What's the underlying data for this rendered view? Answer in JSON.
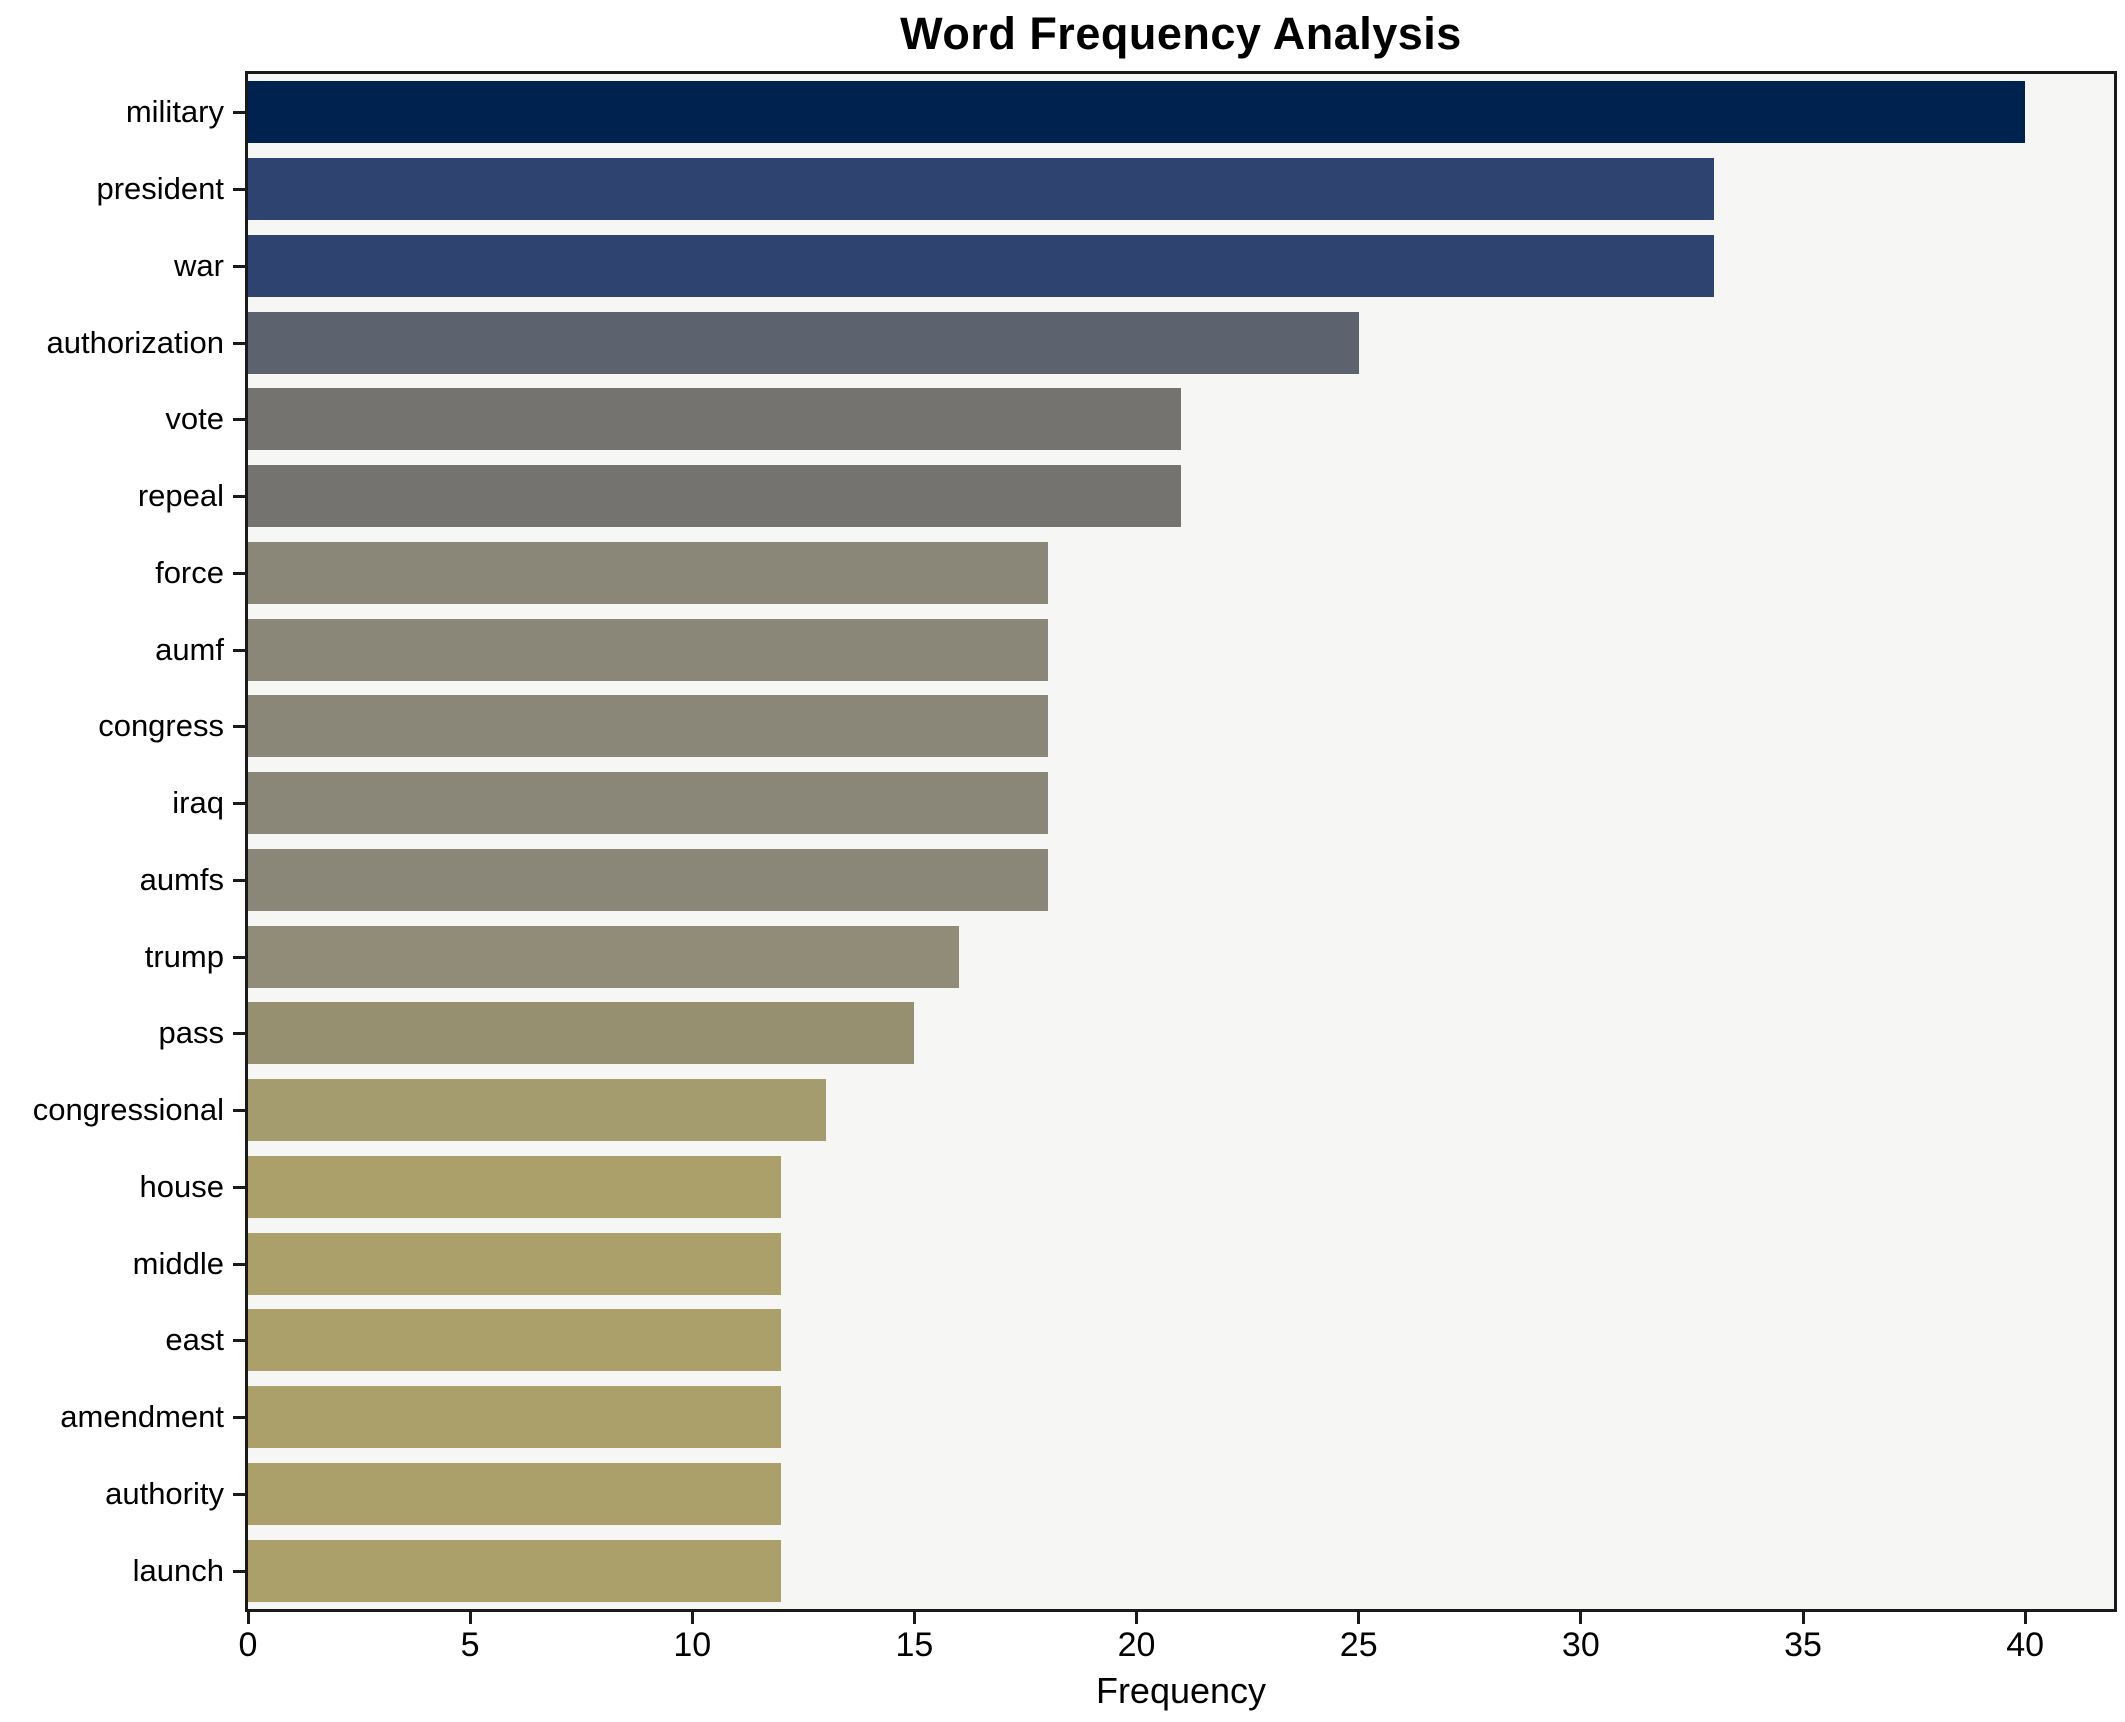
{
  "chart_data": {
    "type": "bar",
    "orientation": "horizontal",
    "title": "Word Frequency Analysis",
    "xlabel": "Frequency",
    "ylabel": "",
    "categories": [
      "military",
      "president",
      "war",
      "authorization",
      "vote",
      "repeal",
      "force",
      "aumf",
      "congress",
      "iraq",
      "aumfs",
      "trump",
      "pass",
      "congressional",
      "house",
      "middle",
      "east",
      "amendment",
      "authority",
      "launch"
    ],
    "values": [
      40,
      33,
      33,
      25,
      21,
      21,
      18,
      18,
      18,
      18,
      18,
      16,
      15,
      13,
      12,
      12,
      12,
      12,
      12,
      12
    ],
    "bar_colors": [
      "#00224e",
      "#2e436f",
      "#2e436f",
      "#5c636e",
      "#747370",
      "#747370",
      "#8a8678",
      "#8a8678",
      "#8a8678",
      "#8a8678",
      "#8a8678",
      "#918c78",
      "#969071",
      "#a49c6f",
      "#aba06a",
      "#aba06a",
      "#aba06a",
      "#aba06a",
      "#aba06a",
      "#aba06a"
    ],
    "xlim": [
      0,
      42
    ],
    "xticks": [
      0,
      5,
      10,
      15,
      20,
      25,
      30,
      35,
      40
    ],
    "grid": false,
    "legend_position": "none",
    "plot_bg": "#f6f6f5",
    "figure_bg": "#ffffff",
    "spine_color": "#1a1a1a"
  }
}
